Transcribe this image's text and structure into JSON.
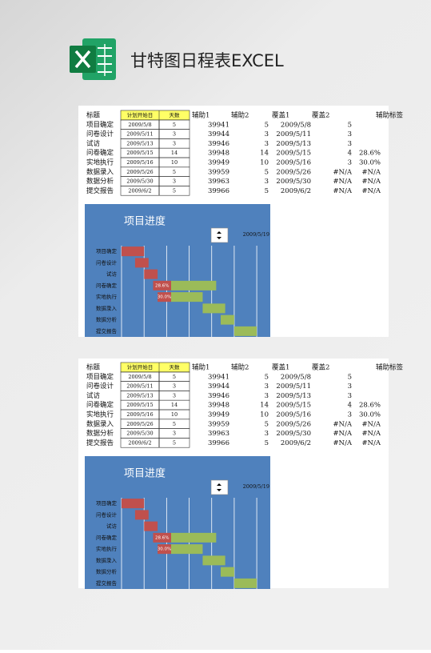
{
  "header": {
    "title": "甘特图日程表EXCEL"
  },
  "sheets": [
    {
      "table": {
        "columns": [
          "标题",
          "计划开始日",
          "天数",
          "辅助1",
          "辅助2",
          "覆盖1",
          "覆盖2",
          "辅助标签"
        ],
        "rows": [
          [
            "项目确定",
            "2009/5/8",
            5,
            39941,
            5,
            "2009/5/8",
            5,
            null
          ],
          [
            "问卷设计",
            "2009/5/11",
            3,
            39944,
            3,
            "2009/5/11",
            3,
            null
          ],
          [
            "试访",
            "2009/5/13",
            3,
            39946,
            3,
            "2009/5/13",
            3,
            null
          ],
          [
            "问卷确定",
            "2009/5/15",
            14,
            39948,
            14,
            "2009/5/15",
            4,
            "28.6%"
          ],
          [
            "实地执行",
            "2009/5/16",
            10,
            39949,
            10,
            "2009/5/16",
            3,
            "30.0%"
          ],
          [
            "数据录入",
            "2009/5/26",
            5,
            39959,
            5,
            "2009/5/26",
            "#N/A",
            "#N/A"
          ],
          [
            "数据分析",
            "2009/5/30",
            3,
            39963,
            3,
            "2009/5/30",
            "#N/A",
            "#N/A"
          ],
          [
            "提交报告",
            "2009/6/2",
            5,
            39966,
            5,
            "2009/6/2",
            "#N/A",
            "#N/A"
          ]
        ]
      },
      "chart": {
        "title": "项目进度",
        "date": "2009/5/19",
        "xlim": [
          39941,
          39974
        ],
        "xticks": [
          39946,
          39951,
          39956,
          39961,
          39966,
          39971
        ],
        "done_color": "#c0504d",
        "todo_color": "#9bbb59",
        "background": "#4f81bd"
      }
    },
    {
      "table": {
        "columns": [
          "标题",
          "计划开始日",
          "天数",
          "辅助1",
          "辅助2",
          "覆盖1",
          "覆盖2",
          "辅助标签"
        ],
        "rows": [
          [
            "项目确定",
            "2009/5/8",
            5,
            39941,
            5,
            "2009/5/8",
            5,
            null
          ],
          [
            "问卷设计",
            "2009/5/11",
            3,
            39944,
            3,
            "2009/5/11",
            3,
            null
          ],
          [
            "试访",
            "2009/5/13",
            3,
            39946,
            3,
            "2009/5/13",
            3,
            null
          ],
          [
            "问卷确定",
            "2009/5/15",
            14,
            39948,
            14,
            "2009/5/15",
            4,
            "28.6%"
          ],
          [
            "实地执行",
            "2009/5/16",
            10,
            39949,
            10,
            "2009/5/16",
            3,
            "30.0%"
          ],
          [
            "数据录入",
            "2009/5/26",
            5,
            39959,
            5,
            "2009/5/26",
            "#N/A",
            "#N/A"
          ],
          [
            "数据分析",
            "2009/5/30",
            3,
            39963,
            3,
            "2009/5/30",
            "#N/A",
            "#N/A"
          ],
          [
            "提交报告",
            "2009/6/2",
            5,
            39966,
            5,
            "2009/6/2",
            "#N/A",
            "#N/A"
          ]
        ]
      },
      "chart": {
        "title": "项目进度",
        "date": "2009/5/19",
        "xlim": [
          39941,
          39974
        ],
        "xticks": [
          39946,
          39951,
          39956,
          39961,
          39966,
          39971
        ],
        "done_color": "#c0504d",
        "todo_color": "#9bbb59",
        "background": "#4f81bd"
      }
    }
  ]
}
